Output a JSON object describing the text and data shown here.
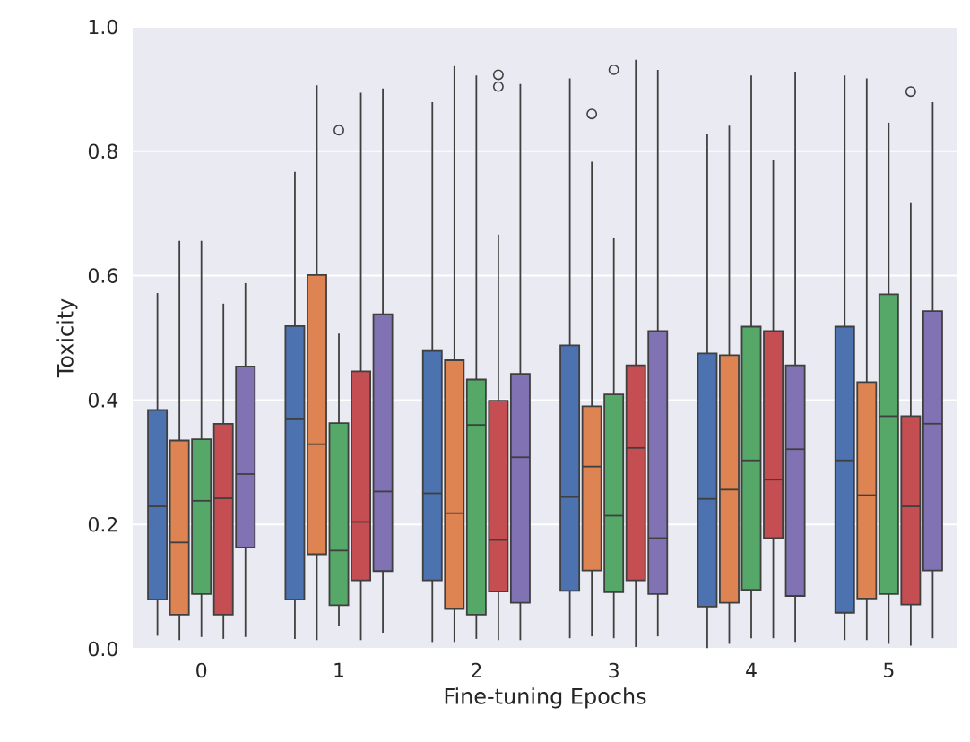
{
  "chart_data": {
    "type": "box",
    "xlabel": "Fine-tuning Epochs",
    "ylabel": "Toxicity",
    "categories": [
      "0",
      "1",
      "2",
      "3",
      "4",
      "5"
    ],
    "ylim": [
      0,
      1
    ],
    "yticks": [
      {
        "value": 0,
        "label": "0.0"
      },
      0.2,
      0.4,
      0.6,
      0.8,
      {
        "value": 1,
        "label": "1.0"
      }
    ],
    "grid": "y",
    "series": [
      {
        "color": "#4c72b0",
        "boxes": [
          {
            "low": 0.021,
            "q1": 0.079,
            "median": 0.229,
            "q3": 0.384,
            "high": 0.572
          },
          {
            "low": 0.016,
            "q1": 0.079,
            "median": 0.369,
            "q3": 0.519,
            "high": 0.767
          },
          {
            "low": 0.011,
            "q1": 0.11,
            "median": 0.25,
            "q3": 0.479,
            "high": 0.879
          },
          {
            "low": 0.017,
            "q1": 0.093,
            "median": 0.244,
            "q3": 0.488,
            "high": 0.917
          },
          {
            "low": 0.001,
            "q1": 0.068,
            "median": 0.241,
            "q3": 0.475,
            "high": 0.827
          },
          {
            "low": 0.014,
            "q1": 0.058,
            "median": 0.303,
            "q3": 0.518,
            "high": 0.922
          }
        ]
      },
      {
        "color": "#dd8452",
        "boxes": [
          {
            "low": 0.014,
            "q1": 0.055,
            "median": 0.171,
            "q3": 0.335,
            "high": 0.656
          },
          {
            "low": 0.014,
            "q1": 0.152,
            "median": 0.329,
            "q3": 0.601,
            "high": 0.906
          },
          {
            "low": 0.011,
            "q1": 0.064,
            "median": 0.218,
            "q3": 0.464,
            "high": 0.937
          },
          {
            "low": 0.02,
            "q1": 0.126,
            "median": 0.293,
            "q3": 0.39,
            "high": 0.783,
            "outliers": [
              0.86
            ]
          },
          {
            "low": 0.008,
            "q1": 0.074,
            "median": 0.256,
            "q3": 0.472,
            "high": 0.841
          },
          {
            "low": 0.014,
            "q1": 0.081,
            "median": 0.247,
            "q3": 0.429,
            "high": 0.917
          }
        ]
      },
      {
        "color": "#55a868",
        "boxes": [
          {
            "low": 0.019,
            "q1": 0.088,
            "median": 0.238,
            "q3": 0.337,
            "high": 0.656
          },
          {
            "low": 0.036,
            "q1": 0.07,
            "median": 0.158,
            "q3": 0.363,
            "high": 0.507,
            "outliers": [
              0.834
            ]
          },
          {
            "low": 0.016,
            "q1": 0.055,
            "median": 0.36,
            "q3": 0.433,
            "high": 0.922
          },
          {
            "low": 0.017,
            "q1": 0.091,
            "median": 0.214,
            "q3": 0.409,
            "high": 0.66,
            "outliers": [
              0.931
            ]
          },
          {
            "low": 0.017,
            "q1": 0.095,
            "median": 0.303,
            "q3": 0.518,
            "high": 0.922
          },
          {
            "low": 0.008,
            "q1": 0.088,
            "median": 0.374,
            "q3": 0.57,
            "high": 0.846
          }
        ]
      },
      {
        "color": "#c44e52",
        "boxes": [
          {
            "low": 0.016,
            "q1": 0.055,
            "median": 0.242,
            "q3": 0.362,
            "high": 0.555
          },
          {
            "low": 0.014,
            "q1": 0.11,
            "median": 0.204,
            "q3": 0.446,
            "high": 0.894
          },
          {
            "low": 0.014,
            "q1": 0.092,
            "median": 0.175,
            "q3": 0.399,
            "high": 0.666,
            "outliers": [
              0.904,
              0.923
            ]
          },
          {
            "low": 0.003,
            "q1": 0.11,
            "median": 0.323,
            "q3": 0.456,
            "high": 0.947
          },
          {
            "low": 0.017,
            "q1": 0.178,
            "median": 0.272,
            "q3": 0.511,
            "high": 0.786
          },
          {
            "low": 0.005,
            "q1": 0.071,
            "median": 0.229,
            "q3": 0.374,
            "high": 0.718,
            "outliers": [
              0.896
            ]
          }
        ]
      },
      {
        "color": "#8172b3",
        "boxes": [
          {
            "low": 0.019,
            "q1": 0.163,
            "median": 0.281,
            "q3": 0.454,
            "high": 0.588
          },
          {
            "low": 0.026,
            "q1": 0.125,
            "median": 0.253,
            "q3": 0.538,
            "high": 0.901
          },
          {
            "low": 0.014,
            "q1": 0.074,
            "median": 0.308,
            "q3": 0.442,
            "high": 0.908
          },
          {
            "low": 0.02,
            "q1": 0.088,
            "median": 0.178,
            "q3": 0.511,
            "high": 0.931
          },
          {
            "low": 0.011,
            "q1": 0.085,
            "median": 0.321,
            "q3": 0.456,
            "high": 0.928
          },
          {
            "low": 0.017,
            "q1": 0.126,
            "median": 0.362,
            "q3": 0.543,
            "high": 0.879
          }
        ]
      }
    ]
  }
}
